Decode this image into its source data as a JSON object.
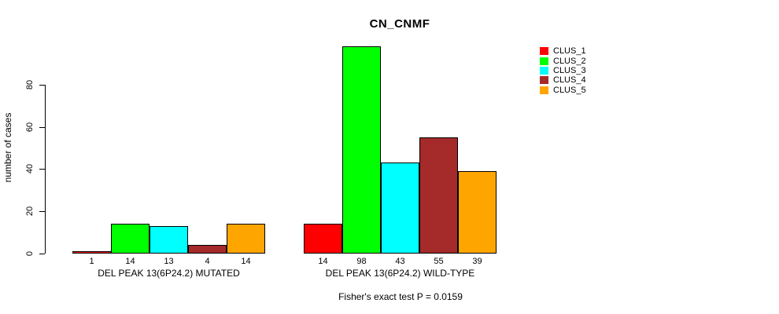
{
  "chart_data": {
    "type": "bar",
    "title": "CN_CNMF",
    "ylabel": "number of cases",
    "xlabel": "",
    "ylim": [
      0,
      80
    ],
    "yticks": [
      0,
      20,
      40,
      60,
      80
    ],
    "grid": false,
    "legend_position": "right",
    "background_color": "#FFFFFF",
    "axis_color": "#000000",
    "bar_border_color": "#000000",
    "groups": [
      {
        "label": "DEL PEAK 13(6P24.2) MUTATED",
        "values": [
          1,
          14,
          13,
          4,
          14
        ]
      },
      {
        "label": "DEL PEAK 13(6P24.2) WILD-TYPE",
        "values": [
          14,
          98,
          43,
          55,
          39
        ]
      }
    ],
    "series": [
      {
        "name": "CLUS_1",
        "color": "#FF0000"
      },
      {
        "name": "CLUS_2",
        "color": "#00FF00"
      },
      {
        "name": "CLUS_3",
        "color": "#00FFFF"
      },
      {
        "name": "CLUS_4",
        "color": "#A52A2A"
      },
      {
        "name": "CLUS_5",
        "color": "#FFA500"
      }
    ],
    "caption": "Fisher's exact test P = 0.0159"
  }
}
